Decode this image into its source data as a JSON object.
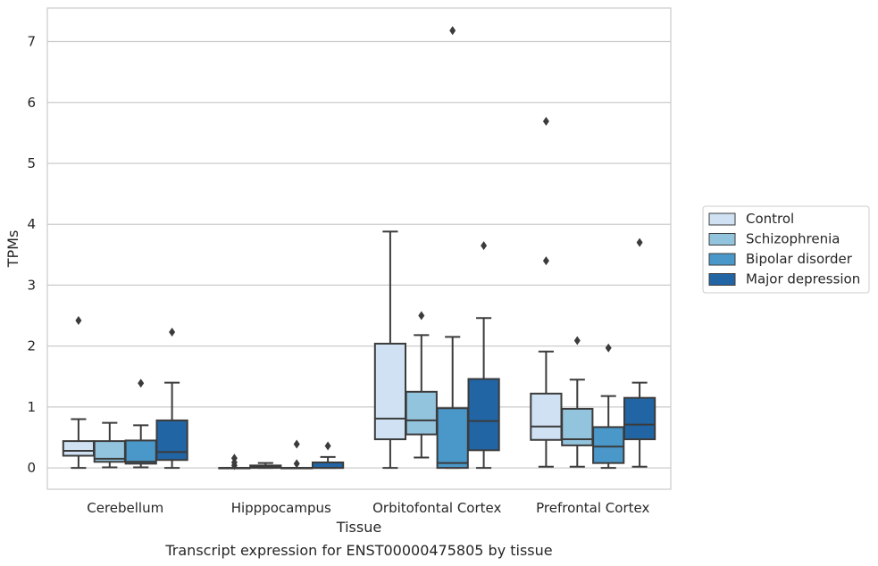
{
  "caption": "Transcript expression for ENST00000475805 by tissue",
  "chart_data": {
    "type": "box",
    "title": "",
    "xlabel": "Tissue",
    "ylabel": "TPMs",
    "ylim": [
      -0.35,
      7.55
    ],
    "yticks": [
      "0",
      "1",
      "2",
      "3",
      "4",
      "5",
      "6",
      "7"
    ],
    "grid": true,
    "legend_position": "right",
    "categories": [
      "Cerebellum",
      "Hipppocampus",
      "Orbitofontal Cortex",
      "Prefrontal Cortex"
    ],
    "series": [
      {
        "name": "Control",
        "color": "#cfe1f2",
        "boxes": [
          {
            "whislo": 0.0,
            "q1": 0.2,
            "med": 0.28,
            "q3": 0.44,
            "whishi": 0.8,
            "fliers": [
              2.42
            ]
          },
          {
            "whislo": 0.0,
            "q1": 0.0,
            "med": 0.0,
            "q3": 0.0,
            "whishi": 0.0,
            "fliers": [
              0.04,
              0.09,
              0.16
            ]
          },
          {
            "whislo": 0.0,
            "q1": 0.47,
            "med": 0.81,
            "q3": 2.04,
            "whishi": 3.88,
            "fliers": []
          },
          {
            "whislo": 0.02,
            "q1": 0.46,
            "med": 0.68,
            "q3": 1.22,
            "whishi": 1.91,
            "fliers": [
              3.4,
              5.69
            ]
          }
        ]
      },
      {
        "name": "Schizophrenia",
        "color": "#93c4de",
        "boxes": [
          {
            "whislo": 0.01,
            "q1": 0.1,
            "med": 0.15,
            "q3": 0.44,
            "whishi": 0.74,
            "fliers": []
          },
          {
            "whislo": 0.0,
            "q1": 0.0,
            "med": 0.02,
            "q3": 0.04,
            "whishi": 0.08,
            "fliers": []
          },
          {
            "whislo": 0.17,
            "q1": 0.55,
            "med": 0.78,
            "q3": 1.25,
            "whishi": 2.18,
            "fliers": [
              2.5
            ]
          },
          {
            "whislo": 0.02,
            "q1": 0.37,
            "med": 0.47,
            "q3": 0.97,
            "whishi": 1.45,
            "fliers": [
              2.09
            ]
          }
        ]
      },
      {
        "name": "Bipolar disorder",
        "color": "#4a98c9",
        "boxes": [
          {
            "whislo": 0.01,
            "q1": 0.07,
            "med": 0.1,
            "q3": 0.45,
            "whishi": 0.7,
            "fliers": [
              1.39
            ]
          },
          {
            "whislo": 0.0,
            "q1": 0.0,
            "med": 0.0,
            "q3": 0.0,
            "whishi": 0.0,
            "fliers": [
              0.07,
              0.39
            ]
          },
          {
            "whislo": 0.0,
            "q1": 0.0,
            "med": 0.08,
            "q3": 0.98,
            "whishi": 2.15,
            "fliers": [
              7.18
            ]
          },
          {
            "whislo": 0.0,
            "q1": 0.08,
            "med": 0.35,
            "q3": 0.67,
            "whishi": 1.18,
            "fliers": [
              1.97
            ]
          }
        ]
      },
      {
        "name": "Major depression",
        "color": "#2265a5",
        "boxes": [
          {
            "whislo": 0.0,
            "q1": 0.13,
            "med": 0.26,
            "q3": 0.78,
            "whishi": 1.4,
            "fliers": [
              2.23
            ]
          },
          {
            "whislo": 0.0,
            "q1": 0.0,
            "med": 0.0,
            "q3": 0.09,
            "whishi": 0.18,
            "fliers": [
              0.36
            ]
          },
          {
            "whislo": 0.0,
            "q1": 0.29,
            "med": 0.77,
            "q3": 1.46,
            "whishi": 2.46,
            "fliers": [
              3.65
            ]
          },
          {
            "whislo": 0.02,
            "q1": 0.47,
            "med": 0.71,
            "q3": 1.15,
            "whishi": 1.4,
            "fliers": [
              3.7
            ]
          }
        ]
      }
    ]
  }
}
